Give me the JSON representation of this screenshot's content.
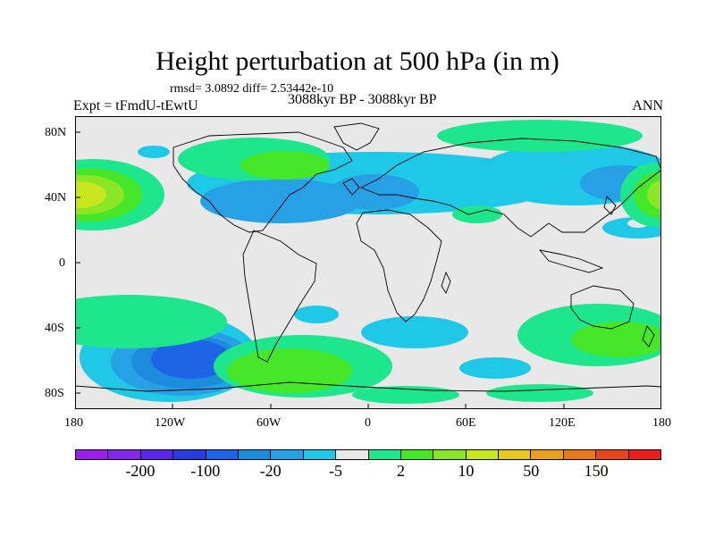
{
  "title": "Height perturbation at 500 hPa (in m)",
  "stats": "rmsd= 3.0892 diff= 2.53442e-10",
  "experiment": "Expt = tFmdU-tEwtU",
  "period": "3088kyr BP - 3088kyr BP",
  "season": "ANN",
  "map": {
    "projection": "cylindrical-equidistant",
    "lon_range": [
      -180,
      180
    ],
    "lat_range": [
      -90,
      90
    ],
    "background_color": "#e8e8e8",
    "coastline_color": "#000000"
  },
  "axes": {
    "y_ticks": [
      "80N",
      "40N",
      "0",
      "40S",
      "80S"
    ],
    "y_values": [
      80,
      40,
      0,
      -40,
      -80
    ],
    "x_ticks": [
      "180",
      "120W",
      "60W",
      "0",
      "60E",
      "120E",
      "180"
    ],
    "x_values": [
      -180,
      -120,
      -60,
      0,
      60,
      120,
      180
    ]
  },
  "colorbar": {
    "colors": [
      "#9a1ee6",
      "#8228e6",
      "#5a28e6",
      "#283cdc",
      "#1e64e6",
      "#1e8cdc",
      "#28a0e6",
      "#1ec8e6",
      "#e8e8e8",
      "#1ee68c",
      "#46e628",
      "#8ce628",
      "#c8e61e",
      "#e6c81e",
      "#e6a01e",
      "#e6781e",
      "#e6461e",
      "#e61e1e"
    ],
    "labels": [
      "-200",
      "-100",
      "-20",
      "-5",
      "2",
      "10",
      "50",
      "150"
    ],
    "label_boundary_index": [
      1,
      3,
      5,
      7,
      9,
      11,
      13,
      15
    ]
  }
}
